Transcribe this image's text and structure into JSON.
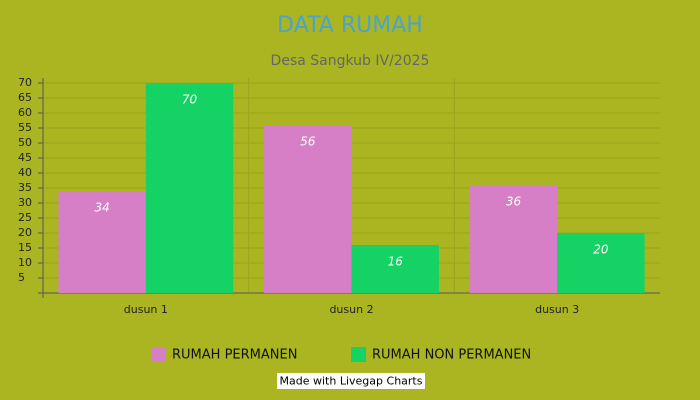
{
  "chart_data": {
    "type": "bar",
    "title": "DATA RUMAH",
    "subtitle": "Desa Sangkub IV/2025",
    "categories": [
      "dusun 1",
      "dusun 2",
      "dusun 3"
    ],
    "series": [
      {
        "name": "RUMAH PERMANEN",
        "color": "#d77fc6",
        "values": [
          34,
          56,
          36
        ]
      },
      {
        "name": "RUMAH NON PERMANEN",
        "color": "#14d263",
        "values": [
          70,
          16,
          20
        ]
      }
    ],
    "ylim": [
      0,
      70
    ],
    "yticks": [
      5,
      10,
      15,
      20,
      25,
      30,
      35,
      40,
      45,
      50,
      55,
      60,
      65,
      70
    ],
    "grid": true,
    "legend": "bottom"
  },
  "credit": "Made with Livegap Charts"
}
